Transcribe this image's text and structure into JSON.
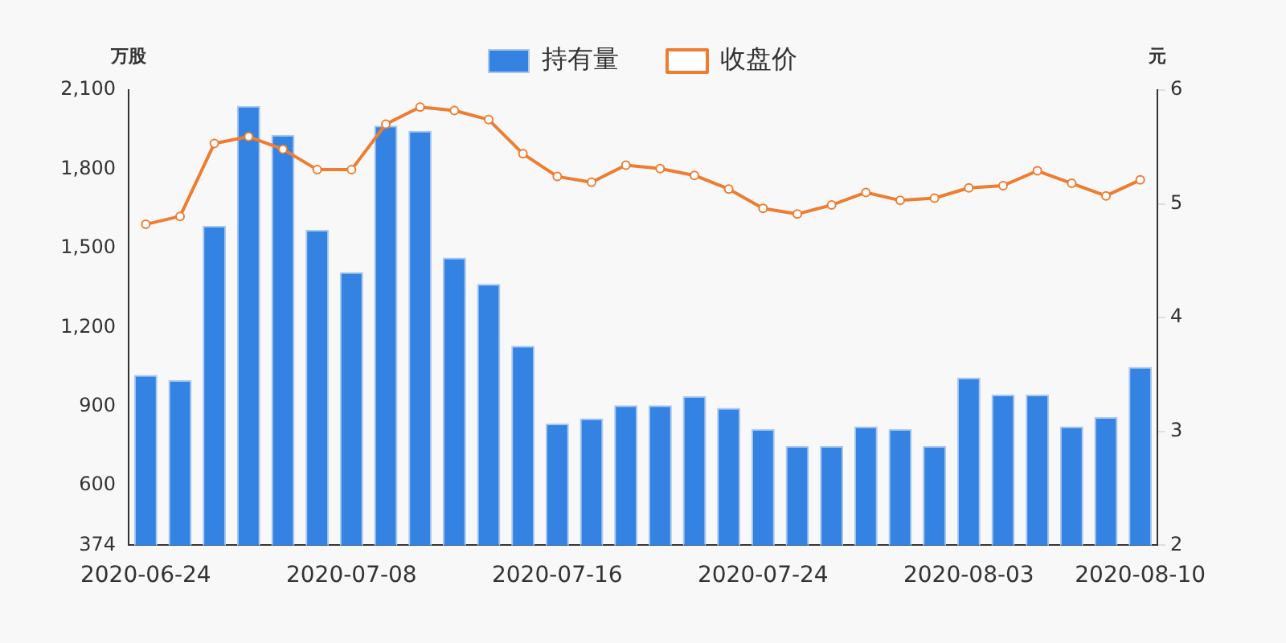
{
  "chart_data": {
    "type": "bar",
    "categories": [
      "2020-06-24",
      null,
      null,
      null,
      null,
      null,
      "2020-07-08",
      null,
      null,
      null,
      null,
      null,
      "2020-07-16",
      null,
      null,
      null,
      null,
      null,
      "2020-07-24",
      null,
      null,
      null,
      null,
      null,
      "2020-08-03",
      null,
      null,
      null,
      null,
      "2020-08-10"
    ],
    "series": [
      {
        "name": "持有量",
        "color": "#3483e3",
        "values": [
          1020,
          1000,
          1585,
          2040,
          1930,
          1570,
          1410,
          1965,
          1945,
          1465,
          1365,
          1130,
          835,
          855,
          905,
          905,
          940,
          895,
          815,
          750,
          750,
          825,
          815,
          750,
          1010,
          945,
          945,
          825,
          860,
          1050
        ]
      },
      {
        "name": "收盘价",
        "type": "line",
        "axis": "y2",
        "color": "#ed7d31",
        "marker": "circle",
        "values": [
          4.82,
          4.89,
          5.53,
          5.59,
          5.48,
          5.3,
          5.3,
          5.7,
          5.85,
          5.82,
          5.74,
          5.44,
          5.24,
          5.19,
          5.34,
          5.31,
          5.25,
          5.13,
          4.96,
          4.91,
          4.99,
          5.1,
          5.03,
          5.05,
          5.14,
          5.16,
          5.29,
          5.18,
          5.07,
          5.21
        ]
      }
    ],
    "ylabel": "万股",
    "y2label": "元",
    "ylim": [
      374,
      2100
    ],
    "yticks": [
      374,
      600,
      900,
      {
        "value": 1200,
        "label": "1,200"
      },
      {
        "value": 1500,
        "label": "1,500"
      },
      {
        "value": 1800,
        "label": "1,800"
      },
      {
        "value": 2100,
        "label": "2,100"
      }
    ],
    "y2lim": [
      2,
      6
    ],
    "y2ticks": [
      2,
      3,
      4,
      5,
      6
    ],
    "grid": false,
    "legend": "top"
  }
}
